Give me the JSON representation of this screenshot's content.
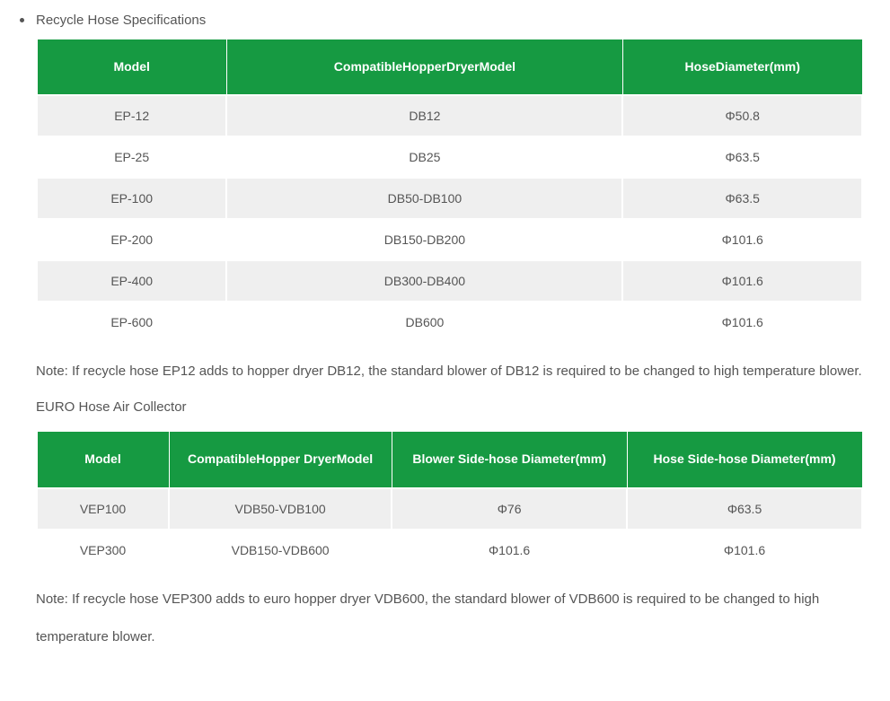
{
  "colors": {
    "header_bg": "#169a42",
    "header_text": "#ffffff",
    "row_odd_bg": "#efefef",
    "row_even_bg": "#ffffff",
    "body_text": "#555555",
    "page_bg": "#ffffff",
    "cell_border": "#ffffff"
  },
  "typography": {
    "body_fontsize": 15,
    "table_fontsize": 14,
    "header_weight": "bold"
  },
  "section1": {
    "title": "Recycle Hose Specifications",
    "table": {
      "type": "table",
      "col_widths_pct": [
        23,
        48,
        29
      ],
      "columns": [
        "Model",
        "CompatibleHopperDryerModel",
        "HoseDiameter(mm)"
      ],
      "rows": [
        [
          "EP-12",
          "DB12",
          "Φ50.8"
        ],
        [
          "EP-25",
          "DB25",
          "Φ63.5"
        ],
        [
          "EP-100",
          "DB50-DB100",
          "Φ63.5"
        ],
        [
          "EP-200",
          "DB150-DB200",
          "Φ101.6"
        ],
        [
          "EP-400",
          "DB300-DB400",
          "Φ101.6"
        ],
        [
          "EP-600",
          "DB600",
          "Φ101.6"
        ]
      ]
    },
    "note": "Note: If recycle hose EP12 adds to hopper dryer DB12,  the standard blower of DB12 is required to be changed to high temperature blower."
  },
  "section2": {
    "title": "EURO Hose Air Collector",
    "table": {
      "type": "table",
      "col_widths_pct": [
        16,
        27,
        28.5,
        28.5
      ],
      "columns": [
        "Model",
        "CompatibleHopper DryerModel",
        "Blower Side-hose Diameter(mm)",
        "Hose Side-hose Diameter(mm)"
      ],
      "rows": [
        [
          "VEP100",
          "VDB50-VDB100",
          "Φ76",
          "Φ63.5"
        ],
        [
          "VEP300",
          "VDB150-VDB600",
          "Φ101.6",
          "Φ101.6"
        ]
      ]
    },
    "note": "Note: If recycle hose VEP300 adds to euro hopper dryer VDB600,  the standard blower of VDB600 is required to be changed to high temperature blower."
  }
}
